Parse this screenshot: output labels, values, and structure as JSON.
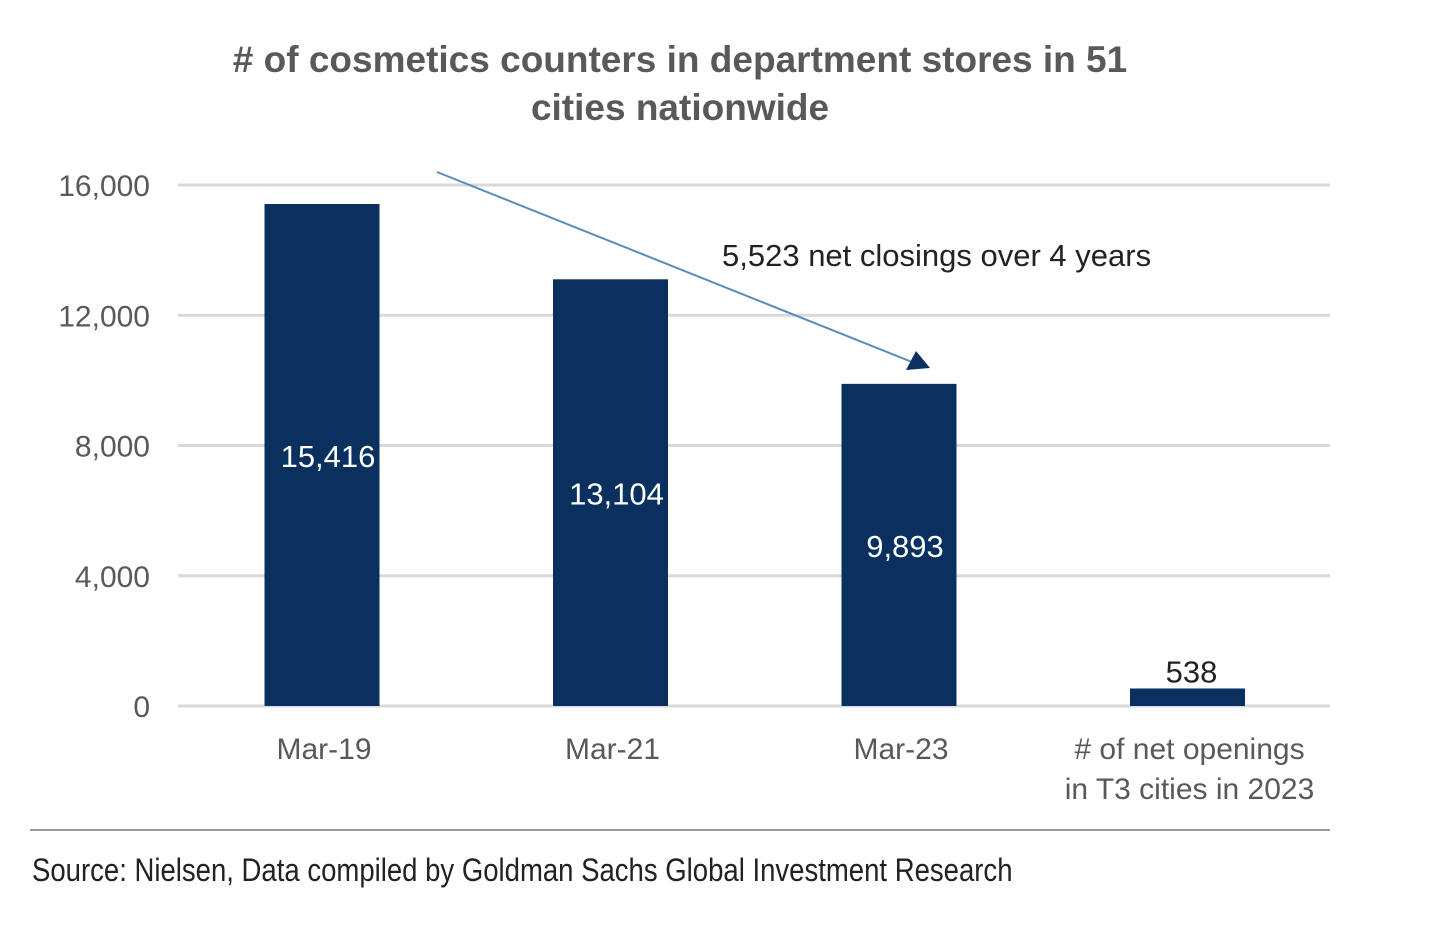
{
  "chart_data": {
    "type": "bar",
    "title": "# of cosmetics counters in department stores in 51 cities nationwide",
    "title_lines": [
      "# of cosmetics counters in department stores in 51",
      "cities nationwide"
    ],
    "categories": [
      "Mar-19",
      "Mar-21",
      "Mar-23",
      "# of net openings in T3 cities in 2023"
    ],
    "category_lines": [
      [
        "Mar-19"
      ],
      [
        "Mar-21"
      ],
      [
        "Mar-23"
      ],
      [
        "# of net openings",
        "in T3 cities in 2023"
      ]
    ],
    "values": [
      15416,
      13104,
      9893,
      538
    ],
    "value_labels": [
      "15,416",
      "13,104",
      "9,893",
      "538"
    ],
    "ylim": [
      0,
      16000
    ],
    "yticks": [
      0,
      4000,
      8000,
      12000,
      16000
    ],
    "ytick_labels": [
      "0",
      "4,000",
      "8,000",
      "12,000",
      "16,000"
    ],
    "grid": true,
    "xlabel": "",
    "ylabel": "",
    "annotation": "5,523 net closings over 4 years",
    "colors": {
      "bar": "#0a3060",
      "grid": "#d9d9d9",
      "text": "#595959",
      "arrow_line": "#5a8cb8"
    }
  },
  "source": "Source: Nielsen, Data compiled by Goldman Sachs Global Investment Research"
}
